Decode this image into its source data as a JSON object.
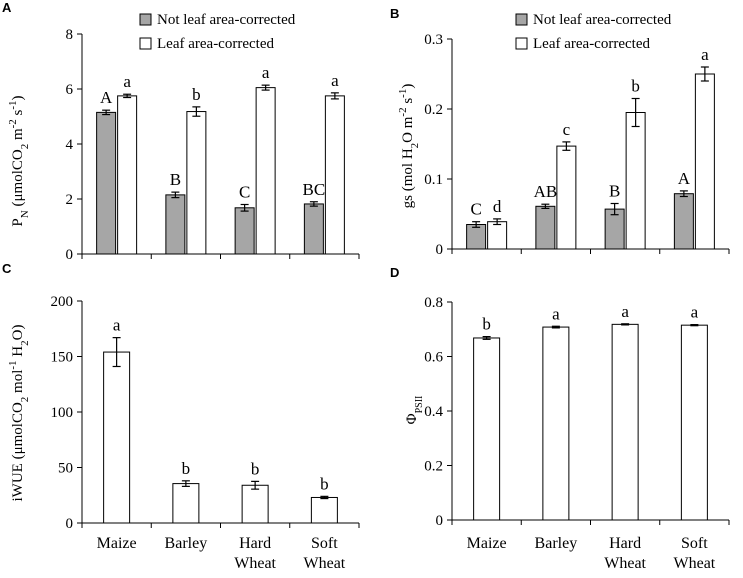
{
  "colors": {
    "grey_bar": "#a6a6a6",
    "white_bar": "#ffffff",
    "stroke": "#000000"
  },
  "categories": [
    {
      "line1": "Maize",
      "line2": ""
    },
    {
      "line1": "Barley",
      "line2": ""
    },
    {
      "line1": "Hard",
      "line2": "Wheat"
    },
    {
      "line1": "Soft",
      "line2": "Wheat"
    }
  ],
  "chart_data": [
    {
      "panel": "A",
      "type": "bar",
      "ylabel_main": "P",
      "ylabel_sub": "N",
      "ylabel_rest": " (μmolCO",
      "ylabel_sub2": "2",
      "ylabel_rest2": " m",
      "ylabel_sup": "-2",
      "ylabel_rest3": " s",
      "ylabel_sup2": "-1",
      "ylabel_end": ")",
      "ylim": [
        0,
        8
      ],
      "yticks": [
        "0",
        "2",
        "4",
        "6",
        "8"
      ],
      "legend": [
        "Not leaf area-corrected",
        "Leaf area-corrected"
      ],
      "series": [
        {
          "name": "Not leaf area-corrected",
          "values": [
            5.15,
            2.15,
            1.68,
            1.82
          ],
          "errors": [
            0.08,
            0.1,
            0.12,
            0.08
          ],
          "labels": [
            "A",
            "B",
            "C",
            "BC"
          ]
        },
        {
          "name": "Leaf area-corrected",
          "values": [
            5.75,
            5.18,
            6.05,
            5.75
          ],
          "errors": [
            0.06,
            0.17,
            0.09,
            0.11
          ],
          "labels": [
            "a",
            "b",
            "a",
            "a"
          ]
        }
      ]
    },
    {
      "panel": "B",
      "type": "bar",
      "ylabel_main": "gs (mol H",
      "ylabel_sub": "2",
      "ylabel_rest": "O m",
      "ylabel_sup": "-2",
      "ylabel_rest2": " s",
      "ylabel_sup2": "-1",
      "ylabel_end": ")",
      "ylim": [
        0,
        0.3
      ],
      "yticks": [
        "0",
        "0.1",
        "0.2",
        "0.3"
      ],
      "legend": [
        "Not leaf area-corrected",
        "Leaf area-corrected"
      ],
      "series": [
        {
          "name": "Not leaf area-corrected",
          "values": [
            0.035,
            0.061,
            0.057,
            0.079
          ],
          "errors": [
            0.004,
            0.003,
            0.008,
            0.004
          ],
          "labels": [
            "C",
            "AB",
            "B",
            "A"
          ]
        },
        {
          "name": "Leaf area-corrected",
          "values": [
            0.039,
            0.147,
            0.195,
            0.25
          ],
          "errors": [
            0.004,
            0.006,
            0.02,
            0.01
          ],
          "labels": [
            "d",
            "c",
            "b",
            "a"
          ]
        }
      ]
    },
    {
      "panel": "C",
      "type": "bar",
      "ylabel_main": "iWUE (μmolCO",
      "ylabel_sub": "2",
      "ylabel_rest": " mol",
      "ylabel_sup": "-1",
      "ylabel_rest2": " H",
      "ylabel_sub2": "2",
      "ylabel_end": "O)",
      "ylim": [
        0,
        200
      ],
      "yticks": [
        "0",
        "50",
        "100",
        "150",
        "200"
      ],
      "series": [
        {
          "name": "iWUE",
          "values": [
            154,
            35.5,
            34,
            23
          ],
          "errors": [
            13,
            2.5,
            3.5,
            1
          ],
          "labels": [
            "a",
            "b",
            "b",
            "b"
          ]
        }
      ]
    },
    {
      "panel": "D",
      "type": "bar",
      "ylabel_main": "Φ",
      "ylabel_sub": "PSII",
      "ylim": [
        0,
        0.8
      ],
      "yticks": [
        "0",
        "0.2",
        "0.4",
        "0.6",
        "0.8"
      ],
      "series": [
        {
          "name": "PhiPSII",
          "values": [
            0.668,
            0.708,
            0.718,
            0.715
          ],
          "errors": [
            0.005,
            0.003,
            0.002,
            0.002
          ],
          "labels": [
            "b",
            "a",
            "a",
            "a"
          ]
        }
      ]
    }
  ]
}
